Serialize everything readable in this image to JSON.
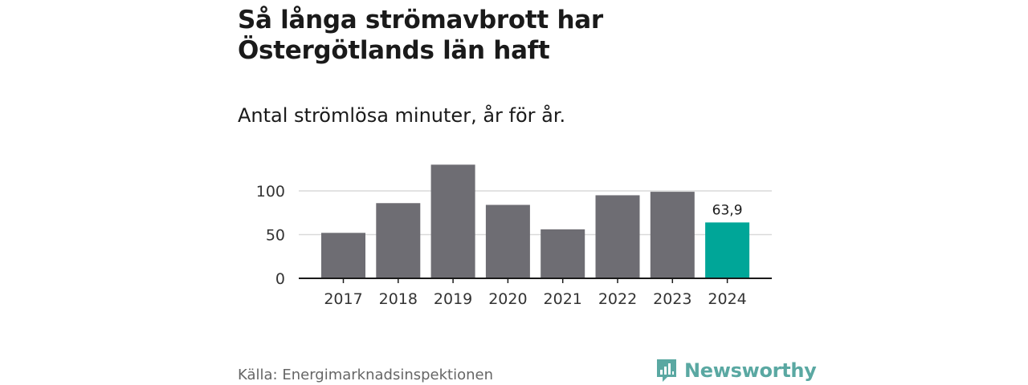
{
  "title": "Så långa strömavbrott har Östergötlands län haft",
  "subtitle": "Antal strömlösa minuter, år för år.",
  "source": "Källa: Energimarknadsinspektionen",
  "brand": {
    "name": "Newsworthy",
    "icon": "bar-chart-logo-icon",
    "color": "#5aa8a2"
  },
  "colors": {
    "bar": "#6e6d73",
    "highlight": "#00a698",
    "grid": "#d9d9d9",
    "axis": "#1a1a1a"
  },
  "chart_data": {
    "type": "bar",
    "title": "Så långa strömavbrott har Östergötlands län haft",
    "subtitle": "Antal strömlösa minuter, år för år.",
    "xlabel": "",
    "ylabel": "",
    "categories": [
      "2017",
      "2018",
      "2019",
      "2020",
      "2021",
      "2022",
      "2023",
      "2024"
    ],
    "values": [
      52,
      86,
      130,
      84,
      56,
      95,
      99,
      63.9
    ],
    "highlight_index": 7,
    "data_labels": [
      {
        "index": 7,
        "text": "63,9"
      }
    ],
    "yticks": [
      0,
      50,
      100
    ],
    "ytick_labels": [
      "0",
      "50",
      "100"
    ],
    "ylim": [
      0,
      130
    ],
    "grid": true,
    "legend": "none"
  }
}
